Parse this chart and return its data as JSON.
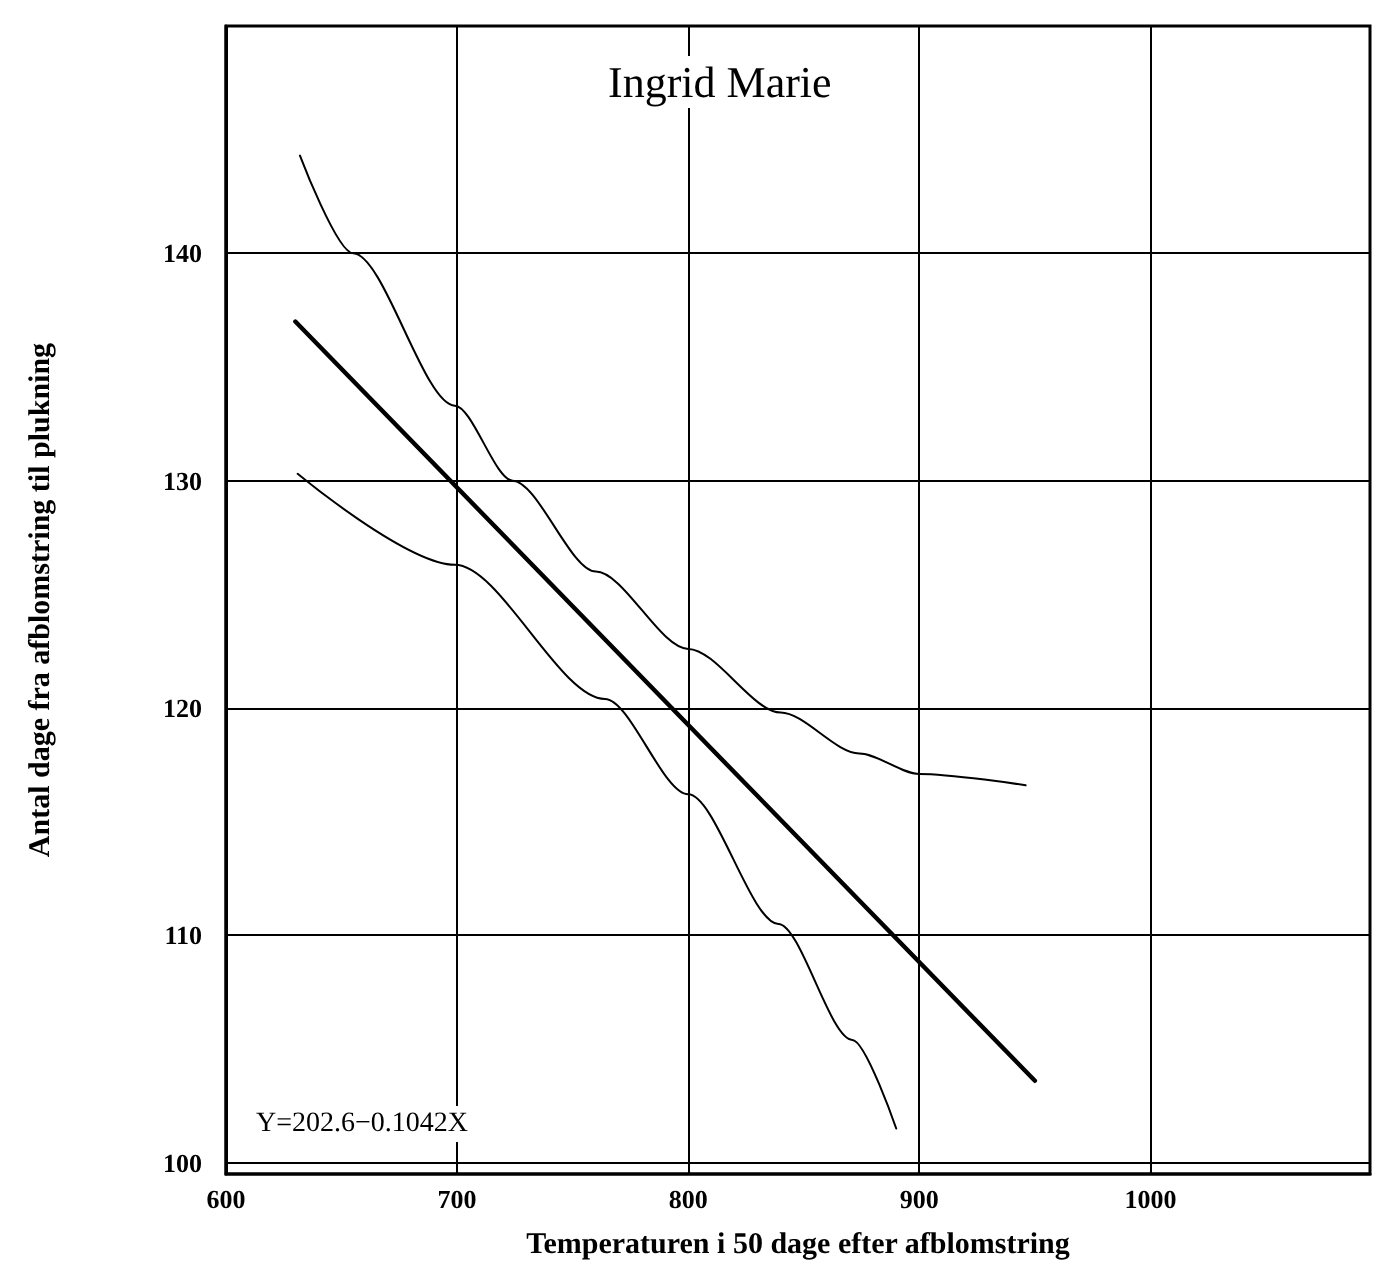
{
  "chart_data": {
    "type": "line",
    "title": "Ingrid Marie",
    "xlabel": "Temperaturen i 50 dage efter afblomstring",
    "ylabel": "Antal dage fra afblomstring til plukning",
    "annotations": [
      "Y=202.6−0.1042X"
    ],
    "series": [
      {
        "x": [
          630,
          950
        ],
        "values": [
          137.0,
          103.6
        ],
        "color": "#000000"
      },
      {
        "x": [
          632,
          655,
          699,
          724,
          760,
          800,
          840,
          874,
          900,
          946
        ],
        "values": [
          144.3,
          140,
          133.3,
          130.0,
          126,
          122.6,
          119.8,
          118.0,
          117.1,
          116.6
        ],
        "color": "#000000"
      },
      {
        "x": [
          631,
          699,
          764,
          800,
          839,
          871,
          890
        ],
        "values": [
          130.3,
          126.3,
          120.4,
          116.2,
          110.5,
          105.4,
          101.5
        ],
        "color": "#000000"
      }
    ],
    "xlim": [
      600,
      1095
    ],
    "xticks": [
      600,
      700,
      800,
      900,
      1000
    ],
    "ylim": [
      99.5,
      150
    ],
    "yticks": [
      100,
      110,
      120,
      130,
      140
    ],
    "grid": true,
    "marker": "none",
    "line_style": "solid"
  }
}
